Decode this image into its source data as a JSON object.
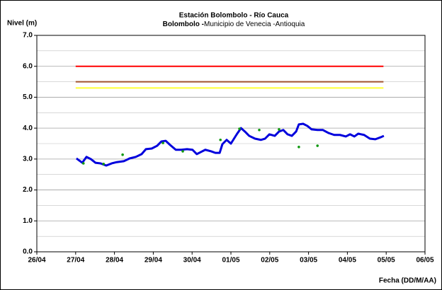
{
  "chart_data": {
    "type": "line",
    "title": "Estación Bolombolo - Río Cauca",
    "subtitle_bold": "Bolombolo -",
    "subtitle": "Municipio de Venecia -Antioquia",
    "y_label": "Nivel (m)",
    "x_label": "Fecha (DD/M/AA)",
    "xlim": [
      0,
      10
    ],
    "xticks": [
      {
        "value": 0,
        "label": "26/04"
      },
      {
        "value": 1,
        "label": "27/04"
      },
      {
        "value": 2,
        "label": "28/04"
      },
      {
        "value": 3,
        "label": "29/04"
      },
      {
        "value": 4,
        "label": "30/04"
      },
      {
        "value": 5,
        "label": "01/05"
      },
      {
        "value": 6,
        "label": "02/05"
      },
      {
        "value": 7,
        "label": "03/05"
      },
      {
        "value": 8,
        "label": "04/05"
      },
      {
        "value": 9,
        "label": "05/05"
      },
      {
        "value": 10,
        "label": "06/05"
      }
    ],
    "ylim": [
      0,
      7
    ],
    "yticks": [
      {
        "value": 0,
        "label": "0.0"
      },
      {
        "value": 1,
        "label": "1.0"
      },
      {
        "value": 2,
        "label": "2.0"
      },
      {
        "value": 3,
        "label": "3.0"
      },
      {
        "value": 4,
        "label": "4.0"
      },
      {
        "value": 5,
        "label": "5.0"
      },
      {
        "value": 6,
        "label": "6.0"
      },
      {
        "value": 7,
        "label": "7.0"
      }
    ],
    "minor_grid": [
      0.5,
      1.5,
      2.5,
      3.5,
      4.5,
      5.5,
      6.5
    ],
    "grid": true,
    "series": [
      {
        "kind": "line",
        "color": "#ff0000",
        "width": 2,
        "x": [
          1,
          8.93
        ],
        "values": [
          6,
          6
        ]
      },
      {
        "kind": "line",
        "color": "#a0522d",
        "width": 2,
        "x": [
          1,
          8.93
        ],
        "values": [
          5.5,
          5.5
        ]
      },
      {
        "kind": "line",
        "color": "#ffff33",
        "width": 2,
        "x": [
          1,
          8.93
        ],
        "values": [
          5.3,
          5.3
        ]
      },
      {
        "kind": "line",
        "color": "#0000dd",
        "width": 3,
        "x": [
          1.02,
          1.17,
          1.28,
          1.39,
          1.51,
          1.64,
          1.79,
          1.93,
          2.06,
          2.24,
          2.39,
          2.55,
          2.7,
          2.81,
          2.96,
          3.1,
          3.21,
          3.32,
          3.43,
          3.58,
          3.72,
          3.87,
          4.01,
          4.12,
          4.23,
          4.34,
          4.49,
          4.6,
          4.71,
          4.78,
          4.89,
          5.0,
          5.15,
          5.26,
          5.36,
          5.47,
          5.62,
          5.77,
          5.88,
          5.99,
          6.13,
          6.24,
          6.35,
          6.46,
          6.57,
          6.68,
          6.75,
          6.86,
          6.97,
          7.08,
          7.23,
          7.37,
          7.52,
          7.66,
          7.81,
          7.96,
          8.07,
          8.18,
          8.28,
          8.43,
          8.58,
          8.72,
          8.87,
          8.94
        ],
        "values": [
          3.02,
          2.88,
          3.07,
          3.0,
          2.88,
          2.86,
          2.79,
          2.86,
          2.9,
          2.93,
          3.02,
          3.07,
          3.16,
          3.32,
          3.34,
          3.43,
          3.57,
          3.59,
          3.46,
          3.3,
          3.3,
          3.32,
          3.3,
          3.16,
          3.23,
          3.3,
          3.25,
          3.2,
          3.2,
          3.48,
          3.62,
          3.5,
          3.8,
          4.0,
          3.89,
          3.75,
          3.66,
          3.62,
          3.66,
          3.8,
          3.75,
          3.89,
          3.94,
          3.8,
          3.75,
          3.89,
          4.12,
          4.14,
          4.07,
          3.96,
          3.94,
          3.94,
          3.84,
          3.78,
          3.78,
          3.73,
          3.8,
          3.73,
          3.82,
          3.78,
          3.66,
          3.64,
          3.71,
          3.75
        ]
      },
      {
        "kind": "scatter",
        "color": "#119911",
        "x": [
          1.2,
          1.72,
          2.21,
          3.25,
          3.76,
          4.73,
          5.22,
          5.73,
          6.24,
          6.75,
          7.23
        ],
        "values": [
          2.86,
          2.84,
          3.14,
          3.52,
          3.25,
          3.62,
          3.98,
          3.94,
          3.96,
          3.39,
          3.43
        ]
      }
    ]
  }
}
